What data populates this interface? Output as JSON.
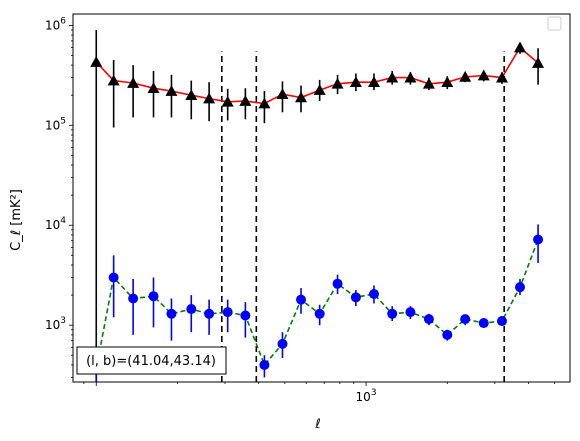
{
  "chart_data": {
    "type": "scatter",
    "title": "",
    "xlabel": "ℓ",
    "ylabel": "C_ℓ  [mK²]",
    "xscale": "log",
    "yscale": "log",
    "xlim": [
      82,
      5700
    ],
    "ylim": [
      270,
      1300000
    ],
    "grid": false,
    "legend": "top-right, empty",
    "x_tick_labels": [
      {
        "value": 1000,
        "base": "10",
        "exp": "3"
      }
    ],
    "y_tick_labels": [
      {
        "value": 1000,
        "base": "10",
        "exp": "3"
      },
      {
        "value": 10000,
        "base": "10",
        "exp": "4"
      },
      {
        "value": 100000,
        "base": "10",
        "exp": "5"
      },
      {
        "value": 1000000,
        "base": "10",
        "exp": "6"
      }
    ],
    "annotation": "(l, b)=(41.04,43.14)",
    "vlines": {
      "x": [
        292,
        392,
        3250
      ],
      "ymin": 270,
      "ymax": 550000,
      "style": "dashed",
      "color": "#000000"
    },
    "series": [
      {
        "color": "#000000",
        "line_color": "#ff0000",
        "line_style": "solid",
        "marker": "triangle",
        "x": [
          100,
          116,
          137,
          163,
          190,
          225,
          262,
          307,
          357,
          420,
          490,
          574,
          673,
          784,
          917,
          1070,
          1250,
          1460,
          1710,
          2000,
          2330,
          2730,
          3190,
          3720,
          4340
        ],
        "y": [
          430000,
          280000,
          265000,
          235000,
          220000,
          200000,
          185000,
          172000,
          175000,
          165000,
          205000,
          190000,
          225000,
          260000,
          270000,
          270000,
          300000,
          300000,
          260000,
          270000,
          305000,
          315000,
          300000,
          600000,
          420000
        ],
        "err_low": [
          430000,
          185000,
          145000,
          115000,
          100000,
          85000,
          75000,
          60000,
          60000,
          60000,
          70000,
          55000,
          50000,
          55000,
          50000,
          45000,
          45000,
          45000,
          35000,
          40000,
          35000,
          40000,
          40000,
          80000,
          165000
        ],
        "err_high": [
          470000,
          170000,
          135000,
          115000,
          100000,
          80000,
          85000,
          60000,
          60000,
          55000,
          70000,
          60000,
          60000,
          60000,
          60000,
          60000,
          50000,
          40000,
          40000,
          40000,
          30000,
          30000,
          40000,
          60000,
          170000
        ]
      },
      {
        "color": "#0000ff",
        "line_color": "#008000",
        "line_style": "dashed",
        "marker": "circle",
        "x": [
          100,
          116,
          137,
          163,
          190,
          225,
          262,
          307,
          357,
          420,
          490,
          574,
          673,
          784,
          917,
          1070,
          1250,
          1460,
          1710,
          2000,
          2330,
          2730,
          3190,
          3720,
          4340
        ],
        "y": [
          370,
          3000,
          1850,
          1950,
          1300,
          1450,
          1300,
          1350,
          1250,
          400,
          650,
          1800,
          1300,
          2600,
          1900,
          2050,
          1300,
          1350,
          1150,
          800,
          1150,
          1050,
          1100,
          2400,
          7200
        ],
        "err_low": [
          110,
          1800,
          1050,
          1000,
          600,
          600,
          500,
          500,
          500,
          100,
          180,
          500,
          300,
          550,
          350,
          400,
          200,
          200,
          150,
          100,
          150,
          100,
          100,
          400,
          3000
        ],
        "err_high": [
          130,
          2000,
          1050,
          1050,
          550,
          550,
          500,
          450,
          450,
          100,
          200,
          550,
          300,
          600,
          350,
          450,
          250,
          200,
          150,
          100,
          100,
          100,
          100,
          500,
          3000
        ]
      }
    ]
  }
}
